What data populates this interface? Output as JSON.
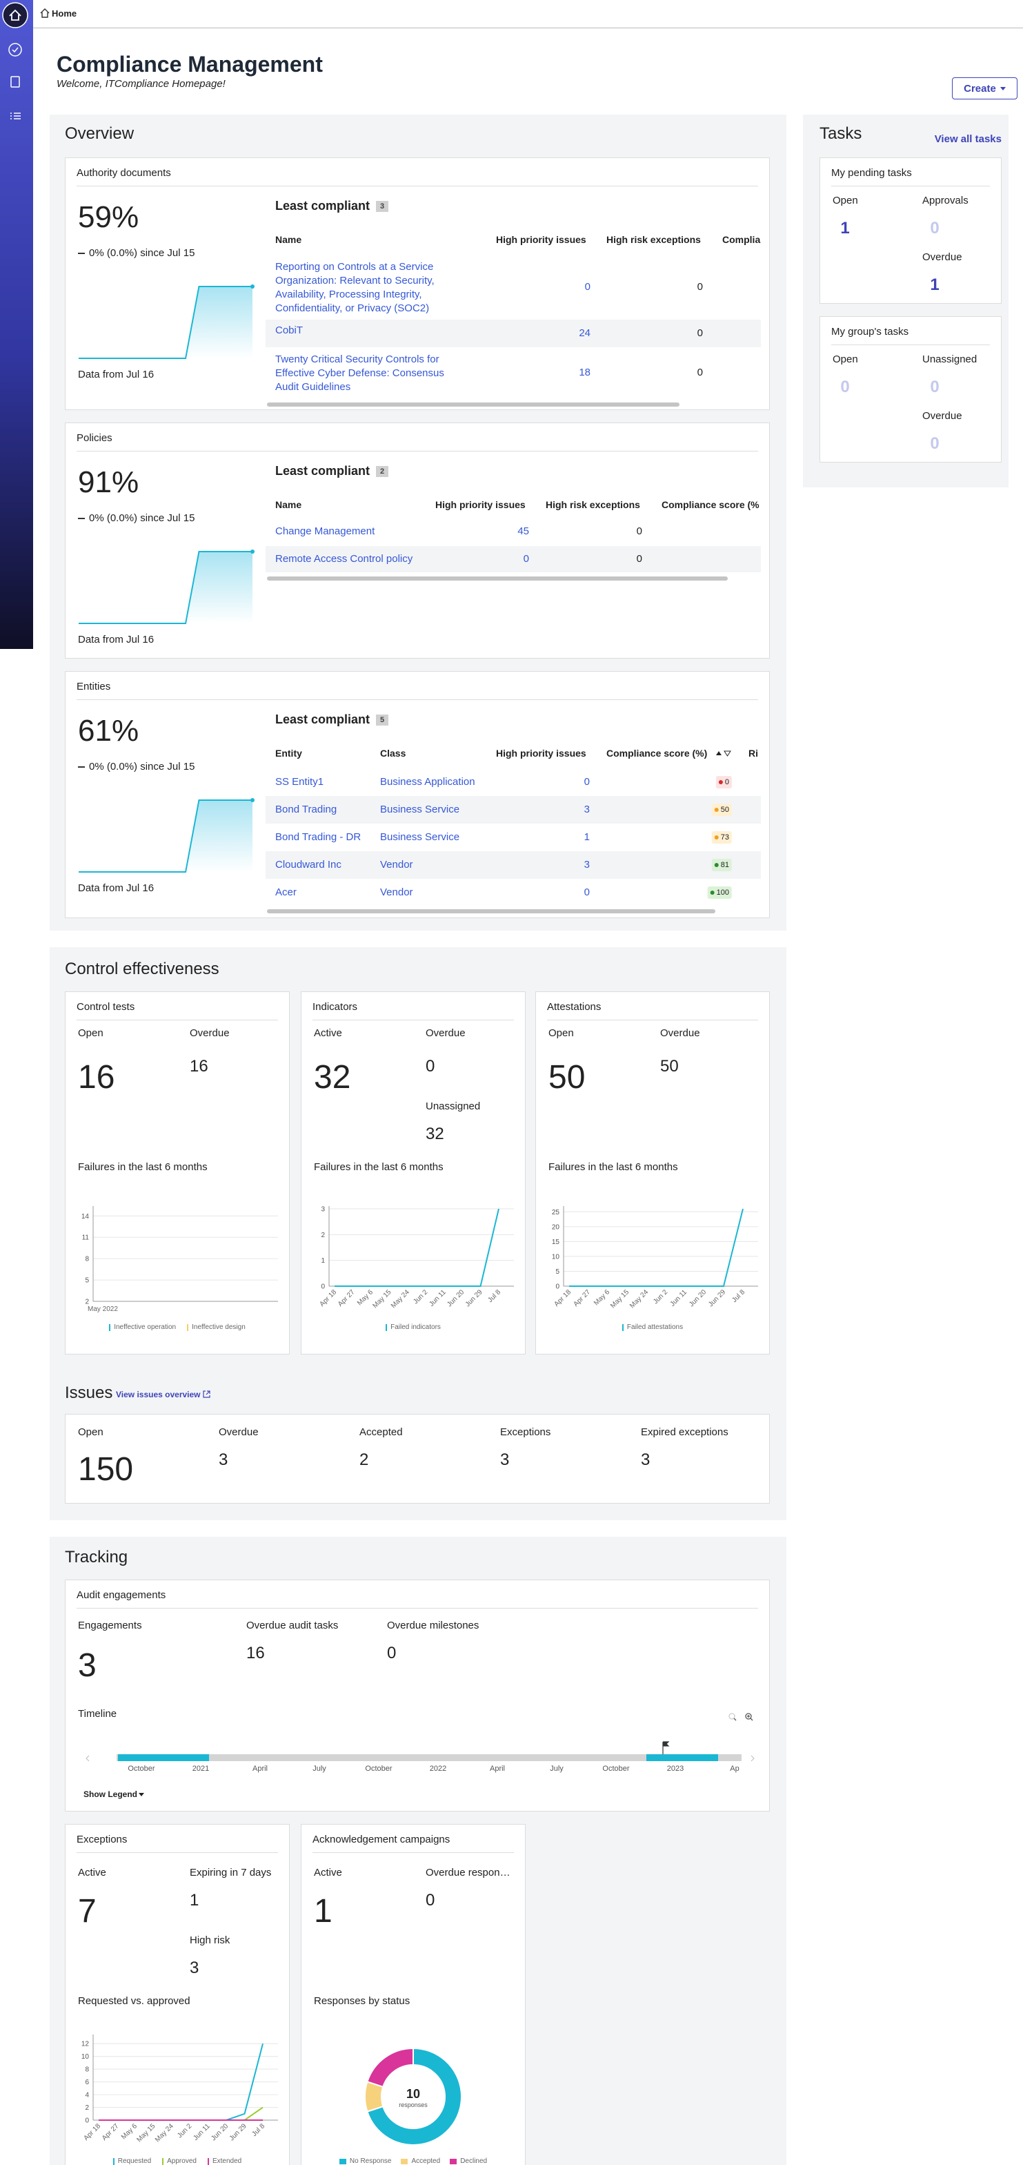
{
  "breadcrumb": "Home",
  "header": {
    "title": "Compliance Management",
    "subtitle": "Welcome, ITCompliance Homepage!",
    "create_button": "Create"
  },
  "overview": {
    "title": "Overview",
    "authority_documents": {
      "title": "Authority documents",
      "percent": "59%",
      "change": "0% (0.0%) since Jul 15",
      "trend": [
        0,
        0,
        0,
        0,
        0,
        0,
        0,
        0,
        0,
        59,
        59,
        59,
        59,
        59
      ],
      "data_from": "Data from Jul 16",
      "least_compliant": "Least compliant",
      "count": 3,
      "columns": [
        "Name",
        "High priority issues",
        "High risk exceptions",
        "Complia"
      ],
      "rows": [
        [
          "Reporting on Controls at a Service Organization: Relevant to Security, Availability, Processing Integrity, Confidentiality, or Privacy (SOC2)",
          0,
          0
        ],
        [
          "CobiT",
          24,
          0
        ],
        [
          "Twenty Critical Security Controls for Effective Cyber Defense: Consensus Audit Guidelines",
          18,
          0
        ]
      ]
    },
    "policies": {
      "title": "Policies",
      "percent": "91%",
      "change": "0% (0.0%) since Jul 15",
      "trend": [
        0,
        0,
        0,
        0,
        0,
        0,
        0,
        0,
        0,
        91,
        91,
        91,
        91,
        91
      ],
      "data_from": "Data from Jul 16",
      "least_compliant": "Least compliant",
      "count": 2,
      "columns": [
        "Name",
        "High priority issues",
        "High risk exceptions",
        "Compliance score (%"
      ],
      "rows": [
        [
          "Change Management",
          45,
          0
        ],
        [
          "Remote Access Control policy",
          0,
          0
        ]
      ]
    },
    "entities": {
      "title": "Entities",
      "percent": "61%",
      "change": "0% (0.0%) since Jul 15",
      "trend": [
        0,
        0,
        0,
        0,
        0,
        0,
        0,
        0,
        0,
        61,
        61,
        61,
        61,
        61
      ],
      "data_from": "Data from Jul 16",
      "least_compliant": "Least compliant",
      "count": 5,
      "columns": [
        "Entity",
        "Class",
        "High priority issues",
        "Compliance score (%)",
        "Ri"
      ],
      "rows": [
        [
          "SS Entity1",
          "Business Application",
          0,
          0
        ],
        [
          "Bond Trading",
          "Business Service",
          3,
          50
        ],
        [
          "Bond Trading - DR",
          "Business Service",
          1,
          73
        ],
        [
          "Cloudward Inc",
          "Vendor",
          3,
          81
        ],
        [
          "Acer",
          "Vendor",
          0,
          100
        ]
      ]
    }
  },
  "tasks": {
    "title": "Tasks",
    "view_all": "View all tasks",
    "pending": {
      "title": "My pending tasks",
      "items": [
        {
          "label": "Open",
          "value": 1
        },
        {
          "label": "Approvals",
          "value": 0
        },
        {
          "label": "Overdue",
          "value": 1
        }
      ]
    },
    "group": {
      "title": "My group's tasks",
      "items": [
        {
          "label": "Open",
          "value": 0
        },
        {
          "label": "Unassigned",
          "value": 0
        },
        {
          "label": "Overdue",
          "value": 0
        }
      ]
    }
  },
  "control_effectiveness": {
    "title": "Control effectiveness",
    "cards": [
      {
        "title": "Control tests",
        "stats": [
          {
            "label": "Open",
            "value": 16
          },
          {
            "label": "Overdue",
            "value": 16
          }
        ],
        "chart_title": "Failures in the last 6 months",
        "chart": {
          "type": "line",
          "categories": [
            "May 2022"
          ],
          "ylim": [
            2,
            15
          ],
          "yticks": [
            2,
            5,
            8,
            11,
            14
          ],
          "series": [
            {
              "name": "Ineffective operation",
              "color": "#1ab7d3",
              "values": [
                null
              ]
            },
            {
              "name": "Ineffective design",
              "color": "#f2cf6b",
              "values": [
                null
              ]
            }
          ]
        }
      },
      {
        "title": "Indicators",
        "stats": [
          {
            "label": "Active",
            "value": 32
          },
          {
            "label": "Overdue",
            "value": 0
          },
          {
            "label": "Unassigned",
            "value": 32
          }
        ],
        "chart_title": "Failures in the last 6 months",
        "chart": {
          "type": "line",
          "categories": [
            "Apr 18",
            "Apr 27",
            "May 6",
            "May 15",
            "May 24",
            "Jun 2",
            "Jun 11",
            "Jun 20",
            "Jun 29",
            "Jul 8"
          ],
          "ylim": [
            0,
            3
          ],
          "yticks": [
            0,
            1,
            2,
            3
          ],
          "series": [
            {
              "name": "Failed indicators",
              "color": "#1ab7d3",
              "values": [
                0,
                0,
                0,
                0,
                0,
                0,
                0,
                0,
                0,
                3
              ]
            }
          ]
        }
      },
      {
        "title": "Attestations",
        "stats": [
          {
            "label": "Open",
            "value": 50
          },
          {
            "label": "Overdue",
            "value": 50
          }
        ],
        "chart_title": "Failures in the last 6 months",
        "chart": {
          "type": "line",
          "categories": [
            "Apr 18",
            "Apr 27",
            "May 6",
            "May 15",
            "May 24",
            "Jun 2",
            "Jun 11",
            "Jun 20",
            "Jun 29",
            "Jul 8"
          ],
          "ylim": [
            0,
            26
          ],
          "yticks": [
            0,
            5,
            10,
            15,
            20,
            25
          ],
          "series": [
            {
              "name": "Failed attestations",
              "color": "#1ab7d3",
              "values": [
                0,
                0,
                0,
                0,
                0,
                0,
                0,
                0,
                0,
                26
              ]
            }
          ]
        }
      }
    ]
  },
  "issues": {
    "title": "Issues",
    "link": "View issues overview",
    "stats": [
      {
        "label": "Open",
        "value": 150
      },
      {
        "label": "Overdue",
        "value": 3
      },
      {
        "label": "Accepted",
        "value": 2
      },
      {
        "label": "Exceptions",
        "value": 3
      },
      {
        "label": "Expired exceptions",
        "value": 3
      }
    ]
  },
  "tracking": {
    "title": "Tracking",
    "audit": {
      "title": "Audit engagements",
      "stats": [
        {
          "label": "Engagements",
          "value": 3
        },
        {
          "label": "Overdue audit tasks",
          "value": 16
        },
        {
          "label": "Overdue milestones",
          "value": 0
        }
      ],
      "timeline_title": "Timeline",
      "timeline_ticks": [
        "October",
        "2021",
        "April",
        "July",
        "October",
        "2022",
        "April",
        "July",
        "October",
        "2023",
        "Ap"
      ],
      "show_legend": "Show Legend"
    },
    "exceptions": {
      "title": "Exceptions",
      "stats": [
        {
          "label": "Active",
          "value": 7
        },
        {
          "label": "Expiring in 7 days",
          "value": 1
        },
        {
          "label": "High risk",
          "value": 3
        }
      ],
      "chart_title": "Requested vs. approved",
      "chart": {
        "type": "line",
        "categories": [
          "Apr 18",
          "Apr 27",
          "May 6",
          "May 15",
          "May 24",
          "Jun 2",
          "Jun 11",
          "Jun 20",
          "Jun 29",
          "Jul 8"
        ],
        "ylim": [
          0,
          13
        ],
        "yticks": [
          0,
          2,
          4,
          6,
          8,
          10,
          12
        ],
        "series": [
          {
            "name": "Requested",
            "color": "#1ab7d3",
            "values": [
              0,
              0,
              0,
              0,
              0,
              0,
              0,
              0,
              1,
              12
            ]
          },
          {
            "name": "Approved",
            "color": "#9acd32",
            "values": [
              0,
              0,
              0,
              0,
              0,
              0,
              0,
              0,
              0,
              2
            ]
          },
          {
            "name": "Extended",
            "color": "#d9349a",
            "values": [
              0,
              0,
              0,
              0,
              0,
              0,
              0,
              0,
              0,
              0
            ]
          }
        ]
      }
    },
    "acknowledgement": {
      "title": "Acknowledgement campaigns",
      "stats": [
        {
          "label": "Active",
          "value": 1
        },
        {
          "label": "Overdue responses",
          "value": 0
        }
      ],
      "chart_title": "Responses by status",
      "chart": {
        "type": "pie",
        "total": 10,
        "total_label": "responses",
        "series": [
          {
            "name": "No Response",
            "color": "#1ab7d3",
            "value": 7
          },
          {
            "name": "Accepted",
            "color": "#f7d27c",
            "value": 1
          },
          {
            "name": "Declined",
            "color": "#d9349a",
            "value": 2
          }
        ]
      }
    }
  }
}
